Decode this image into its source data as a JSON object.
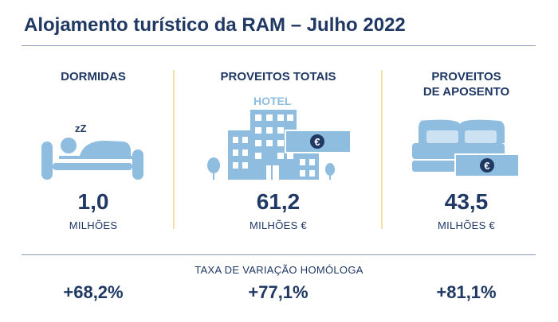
{
  "title": "Alojamento turístico da RAM – Julho 2022",
  "columns": [
    {
      "heading": "DORMIDAS",
      "value": "1,0",
      "unit": "MILHÕES",
      "variation": "+68,2%"
    },
    {
      "heading": "PROVEITOS TOTAIS",
      "value": "61,2",
      "unit": "MILHÕES €",
      "variation": "+77,1%"
    },
    {
      "heading_line1": "PROVEITOS",
      "heading_line2": "DE APOSENTO",
      "value": "43,5",
      "unit": "MILHÕES €",
      "variation": "+81,1%"
    }
  ],
  "hotel_sign": "HOTEL",
  "sleep_glyph": "zZ",
  "euro_symbol": "€",
  "variation_caption": "TAXA DE VARIAÇÃO HOMÓLOGA",
  "colors": {
    "primary": "#1f3864",
    "icon_blue": "#8fbde0",
    "separator": "#f3e2a6"
  }
}
